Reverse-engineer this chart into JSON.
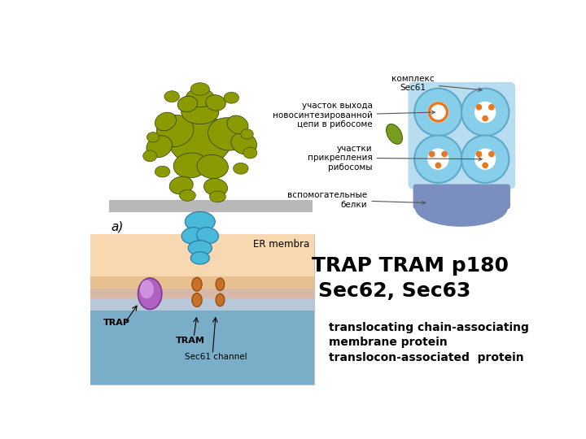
{
  "bg_color": "#ffffff",
  "title_line1": "TRAP TRAM p180",
  "title_line2": "Sec62, Sec63",
  "subtitle1": "translocating chain-associating\nmembrane protein",
  "subtitle2": "translocon-associated  protein",
  "label_a": "a)",
  "label_complex": "комплекс\nSec61",
  "label_exit": "участок выхода\nновосинтезированной\nцепи в рибосоме",
  "label_attach": "участки\nприкрепления\nрибосомы",
  "label_helper": "вспомогательные\nбелки",
  "er_label": "ER membra",
  "trap_label": "TRAP",
  "tram_label": "TRAM",
  "sec61_label": "Sec61 channel",
  "title_fontsize": 18,
  "subtitle_fontsize": 10,
  "label_fontsize": 7,
  "text_color": "#000000",
  "gray_color": "#b8b8b8",
  "cyan_color": "#4ab8d8",
  "olive_color": "#8a9a00",
  "light_blue": "#87ceeb",
  "medium_blue": "#5fa8c8",
  "dark_blue": "#7a8fc0",
  "orange_color": "#e87820",
  "skin_color": "#f4c89a",
  "purple_color": "#9b59b6",
  "tram_color": "#c8702a"
}
